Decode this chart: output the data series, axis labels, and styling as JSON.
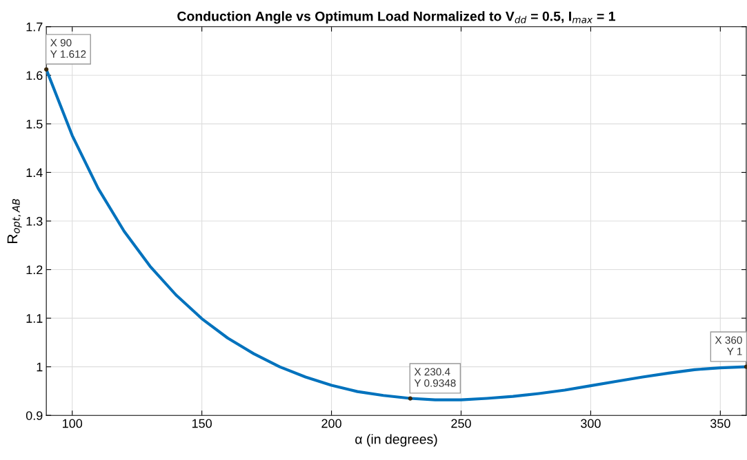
{
  "chart_data": {
    "type": "line",
    "title": "Conduction Angle vs Optimum Load Normalized to V$_{dd}$ = 0.5, I$_{max}$ = 1",
    "xlabel": "α (in degrees)",
    "ylabel": "R$_{opt,AB}$",
    "x": [
      90,
      100,
      110,
      120,
      130,
      140,
      150,
      160,
      170,
      180,
      190,
      200,
      210,
      220,
      230.4,
      240,
      250,
      260,
      270,
      280,
      290,
      300,
      310,
      320,
      330,
      340,
      350,
      360
    ],
    "series": [
      {
        "color": "#0072bd",
        "values": [
          1.612,
          1.476,
          1.367,
          1.279,
          1.207,
          1.148,
          1.099,
          1.059,
          1.027,
          1.0,
          0.979,
          0.962,
          0.949,
          0.941,
          0.935,
          0.932,
          0.932,
          0.935,
          0.939,
          0.945,
          0.952,
          0.961,
          0.97,
          0.979,
          0.987,
          0.994,
          0.998,
          1.0
        ]
      }
    ],
    "xlim": [
      90,
      360
    ],
    "ylim": [
      0.9,
      1.7
    ],
    "xticks": [
      100,
      150,
      200,
      250,
      300,
      350
    ],
    "yticks": [
      0.9,
      1,
      1.1,
      1.2,
      1.3,
      1.4,
      1.5,
      1.6,
      1.7
    ],
    "grid": true,
    "line_style": "solid",
    "marker": "none",
    "annotations": [
      {
        "text": "X 90\nY 1.612",
        "x": 90,
        "y": 1.612
      },
      {
        "text": "X 230.4\nY 0.9348",
        "x": 230.4,
        "y": 0.9348
      },
      {
        "text": "X 360\nY 1",
        "x": 360,
        "y": 1
      }
    ]
  }
}
